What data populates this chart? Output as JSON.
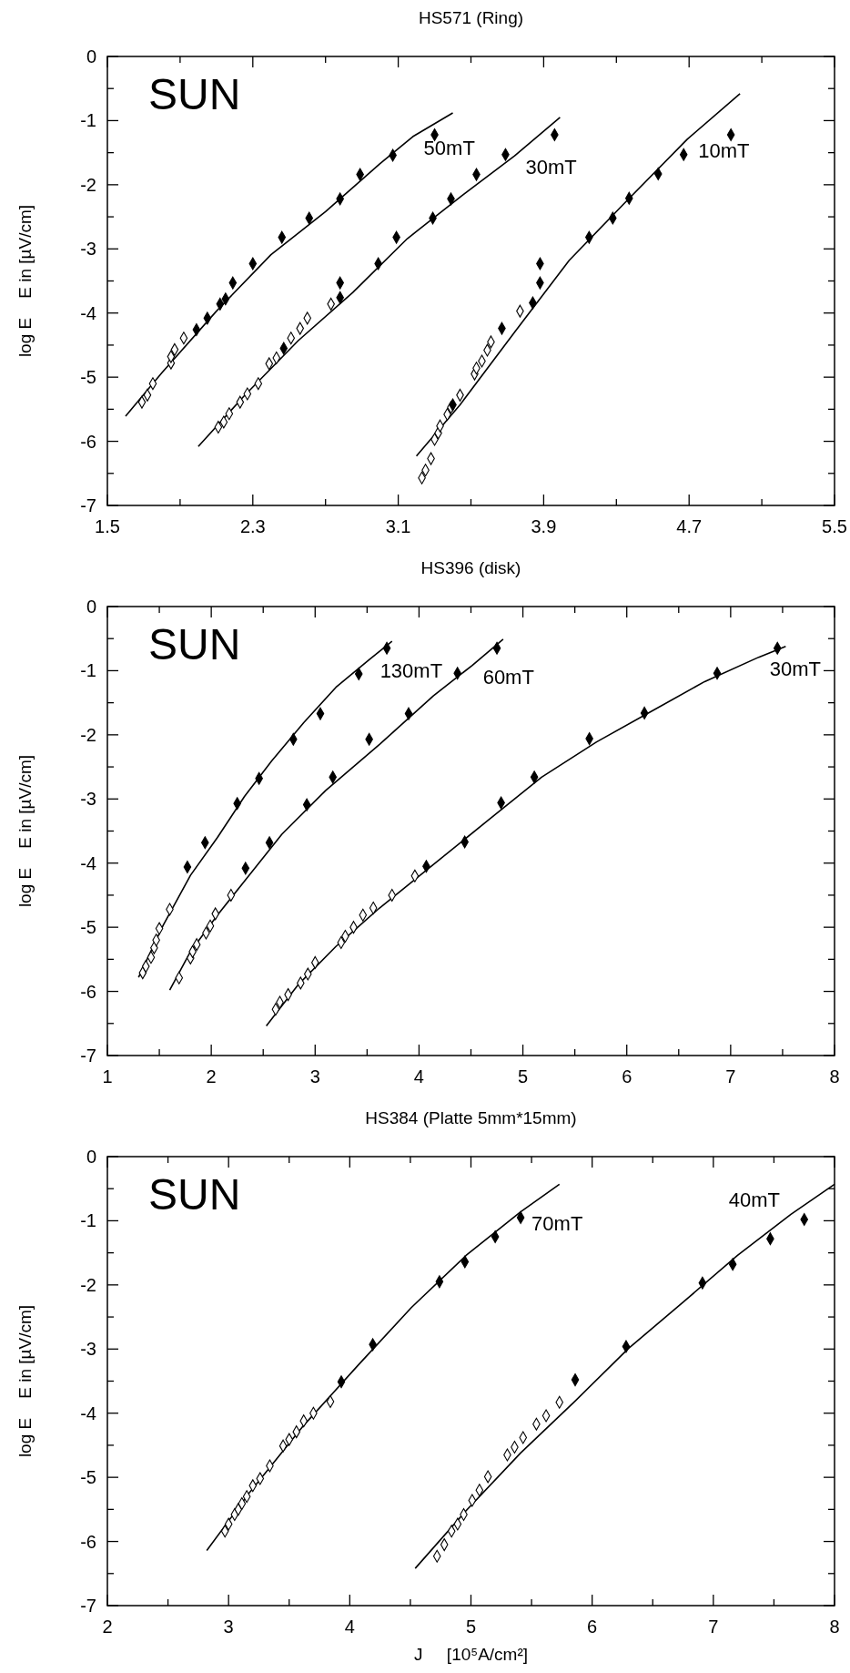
{
  "chart_data": [
    {
      "type": "scatter",
      "title": "HS571  (Ring)",
      "ylabel": "log E    E in [µV/cm]",
      "xlim": [
        1.5,
        5.5
      ],
      "ylim": [
        -7,
        0
      ],
      "xticks": [
        1.5,
        {
          "value": 1.9,
          "label": null
        },
        2.3,
        {
          "value": 2.7,
          "label": null
        },
        3.1,
        {
          "value": 3.5,
          "label": null
        },
        3.9,
        {
          "value": 4.3,
          "label": null
        },
        4.7,
        {
          "value": 5.1,
          "label": null
        },
        5.5
      ],
      "yticks": [
        0,
        {
          "value": -0.5,
          "label": null
        },
        -1,
        {
          "value": -1.5,
          "label": null
        },
        -2,
        {
          "value": -2.5,
          "label": null
        },
        -3,
        {
          "value": -3.5,
          "label": null
        },
        -4,
        {
          "value": -4.5,
          "label": null
        },
        -5,
        {
          "value": -5.5,
          "label": null
        },
        -6,
        {
          "value": -6.5,
          "label": null
        },
        -7
      ],
      "annotations": [
        "SUN"
      ],
      "series": [
        {
          "type": "line",
          "name": "50mT",
          "color": "#000000",
          "x": [
            1.6,
            1.8,
            2.1,
            2.4,
            2.7,
            3.0,
            3.18,
            3.4
          ],
          "values": [
            -5.61,
            -4.93,
            -3.97,
            -3.09,
            -2.42,
            -1.67,
            -1.25,
            -0.88
          ]
        },
        {
          "marker": "diamond",
          "color": "#ffffff",
          "x": [
            1.69,
            1.72,
            1.75,
            1.85,
            1.85,
            1.87,
            1.92
          ],
          "values": [
            -5.39,
            -5.28,
            -5.1,
            -4.78,
            -4.68,
            -4.57,
            -4.39
          ]
        },
        {
          "marker": "diamond",
          "color": "#000000",
          "x": [
            1.99,
            2.05,
            2.12,
            2.15,
            2.19,
            2.3,
            2.46,
            2.61,
            2.78,
            2.89,
            3.07,
            3.3
          ],
          "values": [
            -4.26,
            -4.08,
            -3.86,
            -3.78,
            -3.53,
            -3.23,
            -2.82,
            -2.52,
            -2.22,
            -1.84,
            -1.54,
            -1.22
          ]
        },
        {
          "type": "line",
          "name": "30mT",
          "color": "#000000",
          "x": [
            2.0,
            2.25,
            2.55,
            2.85,
            3.15,
            3.45,
            3.74,
            3.99
          ],
          "values": [
            -6.08,
            -5.3,
            -4.43,
            -3.68,
            -2.84,
            -2.17,
            -1.55,
            -0.95
          ]
        },
        {
          "marker": "diamond",
          "color": "#ffffff",
          "x": [
            2.11,
            2.14,
            2.17,
            2.23,
            2.27,
            2.33,
            2.39,
            2.43,
            2.51,
            2.56,
            2.6,
            2.73
          ],
          "values": [
            -5.78,
            -5.7,
            -5.57,
            -5.39,
            -5.26,
            -5.1,
            -4.79,
            -4.7,
            -4.39,
            -4.24,
            -4.08,
            -3.86
          ]
        },
        {
          "marker": "diamond",
          "color": "#000000",
          "x": [
            2.47,
            2.78,
            2.78,
            2.99,
            3.09,
            3.29,
            3.39,
            3.53,
            3.69,
            3.96
          ],
          "values": [
            -4.55,
            -3.76,
            -3.53,
            -3.23,
            -2.82,
            -2.52,
            -2.22,
            -1.84,
            -1.53,
            -1.22
          ]
        },
        {
          "type": "line",
          "name": "10mT",
          "color": "#000000",
          "x": [
            3.2,
            3.44,
            3.74,
            4.04,
            4.34,
            4.69,
            4.98
          ],
          "values": [
            -6.23,
            -5.43,
            -4.3,
            -3.18,
            -2.3,
            -1.29,
            -0.58
          ]
        },
        {
          "marker": "diamond",
          "color": "#ffffff",
          "x": [
            3.23,
            3.25,
            3.28,
            3.3,
            3.32,
            3.33,
            3.37,
            3.39,
            3.44,
            3.52,
            3.53,
            3.56,
            3.59,
            3.61,
            3.77
          ],
          "values": [
            -6.57,
            -6.45,
            -6.27,
            -5.97,
            -5.87,
            -5.76,
            -5.58,
            -5.47,
            -5.28,
            -4.95,
            -4.86,
            -4.75,
            -4.58,
            -4.45,
            -3.97
          ]
        },
        {
          "marker": "diamond",
          "color": "#000000",
          "x": [
            3.4,
            3.67,
            3.84,
            3.88,
            3.88,
            4.15,
            4.28,
            4.37,
            4.53,
            4.67,
            4.93
          ],
          "values": [
            -5.43,
            -4.24,
            -3.84,
            -3.53,
            -3.23,
            -2.82,
            -2.52,
            -2.21,
            -1.83,
            -1.53,
            -1.22
          ]
        }
      ]
    },
    {
      "type": "scatter",
      "title": "HS396  (disk)",
      "ylabel": "log E    E in [µV/cm]",
      "xlim": [
        1,
        8
      ],
      "ylim": [
        -7,
        0
      ],
      "xticks": [
        1,
        {
          "value": 1.5,
          "label": null
        },
        2,
        {
          "value": 2.5,
          "label": null
        },
        3,
        {
          "value": 3.5,
          "label": null
        },
        4,
        {
          "value": 4.5,
          "label": null
        },
        5,
        {
          "value": 5.5,
          "label": null
        },
        6,
        {
          "value": 6.5,
          "label": null
        },
        7,
        {
          "value": 7.5,
          "label": null
        },
        8
      ],
      "yticks": [
        0,
        {
          "value": -0.5,
          "label": null
        },
        -1,
        {
          "value": -1.5,
          "label": null
        },
        -2,
        {
          "value": -2.5,
          "label": null
        },
        -3,
        {
          "value": -3.5,
          "label": null
        },
        -4,
        {
          "value": -4.5,
          "label": null
        },
        -5,
        {
          "value": -5.5,
          "label": null
        },
        -6,
        {
          "value": -6.5,
          "label": null
        },
        -7
      ],
      "annotations": [
        "SUN"
      ],
      "series": [
        {
          "type": "line",
          "name": "130mT",
          "color": "#000000",
          "x": [
            1.3,
            1.54,
            1.8,
            2.06,
            2.32,
            2.58,
            2.89,
            3.2,
            3.52,
            3.74
          ],
          "values": [
            -5.78,
            -4.96,
            -4.19,
            -3.6,
            -2.96,
            -2.41,
            -1.81,
            -1.26,
            -0.83,
            -0.54
          ]
        },
        {
          "marker": "diamond",
          "color": "#ffffff",
          "x": [
            1.34,
            1.37,
            1.42,
            1.45,
            1.47,
            1.5,
            1.6
          ],
          "values": [
            -5.71,
            -5.61,
            -5.47,
            -5.32,
            -5.2,
            -5.02,
            -4.72
          ]
        },
        {
          "marker": "diamond",
          "color": "#000000",
          "x": [
            1.77,
            1.94,
            2.25,
            2.46,
            2.79,
            3.05,
            3.42,
            3.69
          ],
          "values": [
            -4.06,
            -3.68,
            -3.07,
            -2.68,
            -2.07,
            -1.67,
            -1.05,
            -0.65
          ]
        },
        {
          "type": "line",
          "name": "60mT",
          "color": "#000000",
          "x": [
            1.6,
            1.8,
            2.06,
            2.32,
            2.68,
            3.1,
            3.62,
            4.14,
            4.51,
            4.81
          ],
          "values": [
            -5.98,
            -5.38,
            -4.81,
            -4.28,
            -3.55,
            -2.87,
            -2.15,
            -1.39,
            -0.92,
            -0.51
          ]
        },
        {
          "marker": "diamond",
          "color": "#ffffff",
          "x": [
            1.69,
            1.8,
            1.82,
            1.86,
            1.95,
            1.99,
            2.04,
            2.19
          ],
          "values": [
            -5.79,
            -5.48,
            -5.38,
            -5.27,
            -5.09,
            -4.98,
            -4.79,
            -4.5
          ]
        },
        {
          "marker": "diamond",
          "color": "#000000",
          "x": [
            2.33,
            2.56,
            2.92,
            3.17,
            3.52,
            3.9,
            4.37,
            4.75
          ],
          "values": [
            -4.08,
            -3.68,
            -3.09,
            -2.66,
            -2.07,
            -1.67,
            -1.04,
            -0.65
          ]
        },
        {
          "type": "line",
          "name": "30mT",
          "color": "#000000",
          "x": [
            2.53,
            2.84,
            3.2,
            3.62,
            4.14,
            4.66,
            5.18,
            5.71,
            6.23,
            6.75,
            7.27,
            7.53
          ],
          "values": [
            -6.54,
            -5.89,
            -5.3,
            -4.7,
            -4.02,
            -3.34,
            -2.66,
            -2.11,
            -1.64,
            -1.17,
            -0.79,
            -0.62
          ]
        },
        {
          "marker": "diamond",
          "color": "#ffffff",
          "x": [
            2.62,
            2.66,
            2.74,
            2.86,
            2.93,
            3.0,
            3.25,
            3.29,
            3.37,
            3.46,
            3.56,
            3.74,
            3.96
          ],
          "values": [
            -6.28,
            -6.17,
            -6.05,
            -5.87,
            -5.73,
            -5.55,
            -5.24,
            -5.14,
            -5.0,
            -4.81,
            -4.7,
            -4.5,
            -4.2
          ]
        },
        {
          "marker": "diamond",
          "color": "#000000",
          "x": [
            4.07,
            4.44,
            4.79,
            5.11,
            5.64,
            6.17,
            6.87,
            7.45
          ],
          "values": [
            -4.05,
            -3.67,
            -3.06,
            -2.66,
            -2.06,
            -1.66,
            -1.04,
            -0.65
          ]
        }
      ]
    },
    {
      "type": "scatter",
      "title": "HS384  (Platte 5mm*15mm)",
      "xlabel": "J     [10⁵A/cm²]",
      "ylabel": "log E    E in [µV/cm]",
      "xlim": [
        2,
        8
      ],
      "ylim": [
        -7,
        0
      ],
      "xticks": [
        2,
        {
          "value": 2.5,
          "label": null
        },
        3,
        {
          "value": 3.5,
          "label": null
        },
        4,
        {
          "value": 4.5,
          "label": null
        },
        5,
        {
          "value": 5.5,
          "label": null
        },
        6,
        {
          "value": 6.5,
          "label": null
        },
        7,
        {
          "value": 7.5,
          "label": null
        },
        8
      ],
      "yticks": [
        0,
        {
          "value": -0.5,
          "label": null
        },
        -1,
        {
          "value": -1.5,
          "label": null
        },
        -2,
        {
          "value": -2.5,
          "label": null
        },
        -3,
        {
          "value": -3.5,
          "label": null
        },
        -4,
        {
          "value": -4.5,
          "label": null
        },
        -5,
        {
          "value": -5.5,
          "label": null
        },
        -6,
        {
          "value": -6.5,
          "label": null
        },
        -7
      ],
      "annotations": [
        "SUN"
      ],
      "series": [
        {
          "type": "line",
          "name": "70mT",
          "color": "#000000",
          "x": [
            2.82,
            3.18,
            3.62,
            4.07,
            4.51,
            4.96,
            5.41,
            5.73
          ],
          "values": [
            -6.14,
            -5.22,
            -4.19,
            -3.25,
            -2.35,
            -1.54,
            -0.86,
            -0.43
          ]
        },
        {
          "marker": "diamond",
          "color": "#ffffff",
          "x": [
            2.97,
            3.0,
            3.05,
            3.08,
            3.11,
            3.15,
            3.2,
            3.26,
            3.34,
            3.45,
            3.5,
            3.56,
            3.62,
            3.7,
            3.84
          ],
          "values": [
            -5.84,
            -5.73,
            -5.58,
            -5.5,
            -5.41,
            -5.3,
            -5.13,
            -5.02,
            -4.82,
            -4.51,
            -4.41,
            -4.29,
            -4.12,
            -4.0,
            -3.82
          ]
        },
        {
          "marker": "diamond",
          "color": "#000000",
          "x": [
            3.93,
            4.19,
            4.74,
            4.95,
            5.2,
            5.41
          ],
          "values": [
            -3.51,
            -2.93,
            -1.95,
            -1.64,
            -1.25,
            -0.95
          ]
        },
        {
          "type": "line",
          "name": "40mT",
          "color": "#000000",
          "x": [
            4.54,
            4.96,
            5.41,
            5.86,
            6.3,
            6.75,
            7.2,
            7.64,
            8.0
          ],
          "values": [
            -6.42,
            -5.52,
            -4.62,
            -3.81,
            -2.99,
            -2.27,
            -1.54,
            -0.9,
            -0.43
          ]
        },
        {
          "marker": "diamond",
          "color": "#ffffff",
          "x": [
            4.72,
            4.78,
            4.84,
            4.89,
            4.94,
            5.01,
            5.07,
            5.14,
            5.3,
            5.36,
            5.43,
            5.54,
            5.62,
            5.73
          ],
          "values": [
            -6.23,
            -6.05,
            -5.84,
            -5.73,
            -5.58,
            -5.36,
            -5.2,
            -4.99,
            -4.65,
            -4.53,
            -4.38,
            -4.17,
            -4.04,
            -3.83
          ]
        },
        {
          "marker": "diamond",
          "color": "#000000",
          "x": [
            5.86,
            6.28,
            6.91,
            7.16,
            7.47,
            7.75
          ],
          "values": [
            -3.48,
            -2.96,
            -1.97,
            -1.68,
            -1.28,
            -0.98
          ]
        }
      ]
    }
  ]
}
